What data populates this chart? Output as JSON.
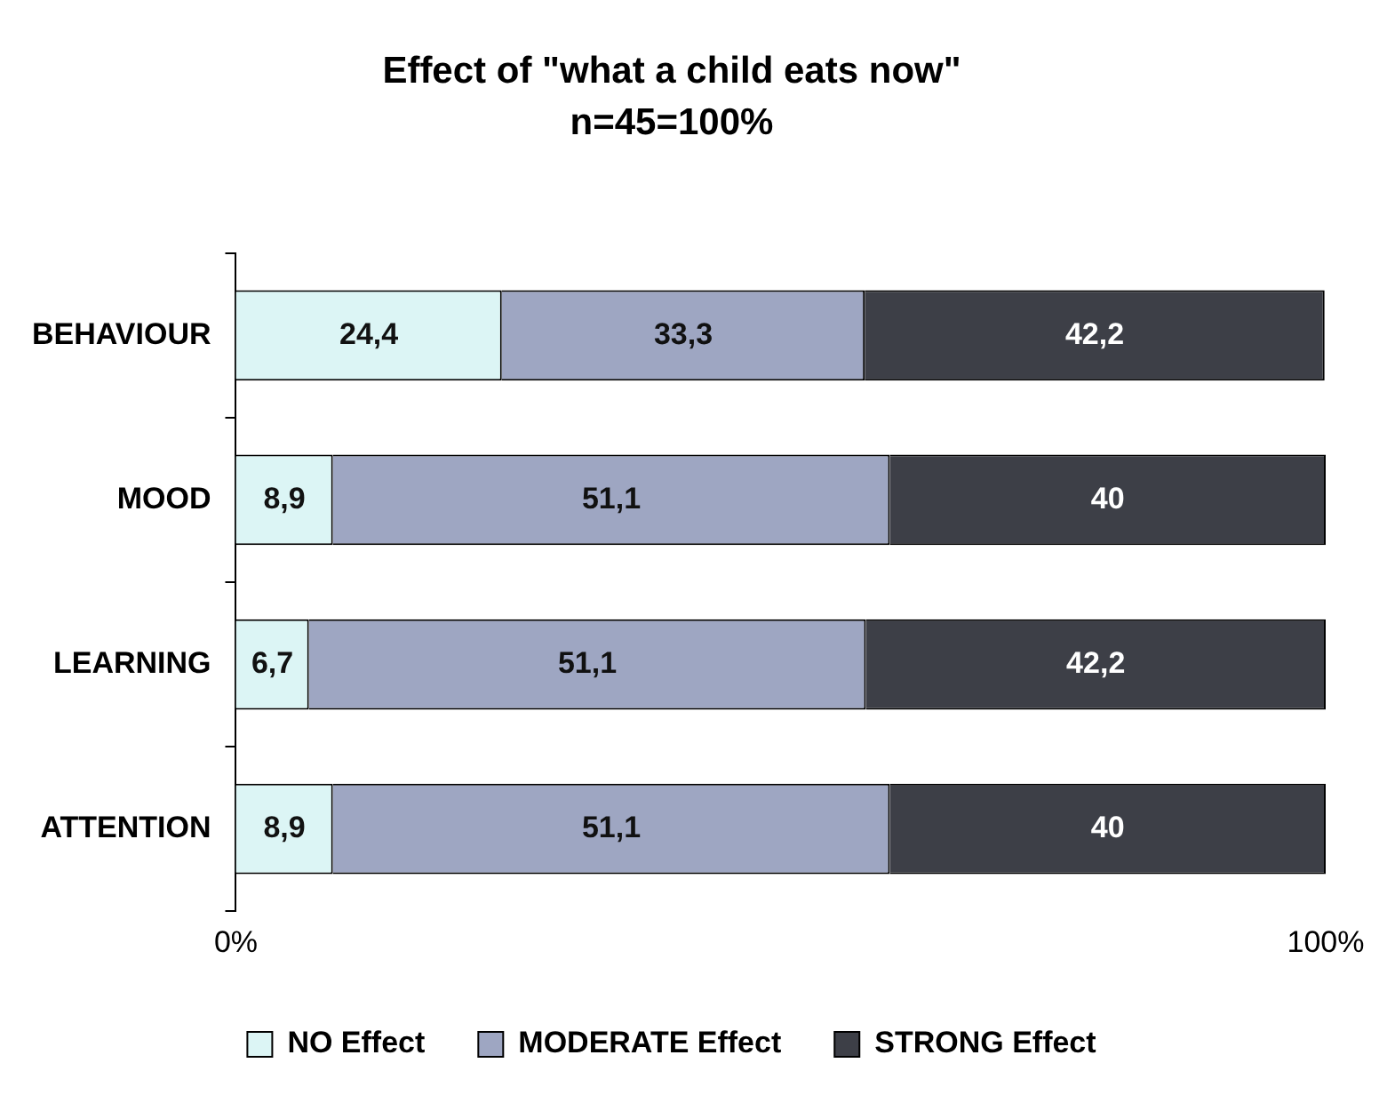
{
  "chart_data": {
    "type": "bar",
    "orientation": "horizontal",
    "stacked": true,
    "title": "Effect of \"what a child eats now\"",
    "subtitle": "n=45=100%",
    "categories": [
      "BEHAVIOUR",
      "MOOD",
      "LEARNING",
      "ATTENTION"
    ],
    "series": [
      {
        "name": "NO Effect",
        "color": "#dcf5f5",
        "values": [
          24.4,
          8.9,
          6.7,
          8.9
        ],
        "value_labels": [
          "24,4",
          "8,9",
          "6,7",
          "8,9"
        ]
      },
      {
        "name": "MODERATE Effect",
        "color": "#9ea6c2",
        "values": [
          33.3,
          51.1,
          51.1,
          51.1
        ],
        "value_labels": [
          "33,3",
          "51,1",
          "51,1",
          "51,1"
        ]
      },
      {
        "name": "STRONG Effect",
        "color": "#3d3f47",
        "values": [
          42.2,
          40,
          42.2,
          40
        ],
        "value_labels": [
          "42,2",
          "40",
          "42,2",
          "40"
        ]
      }
    ],
    "xlim": [
      0,
      100
    ],
    "xticks": [
      {
        "value": 0,
        "label": "0%"
      },
      {
        "value": 100,
        "label": "100%"
      }
    ],
    "grid": false,
    "legend": "bottom"
  }
}
